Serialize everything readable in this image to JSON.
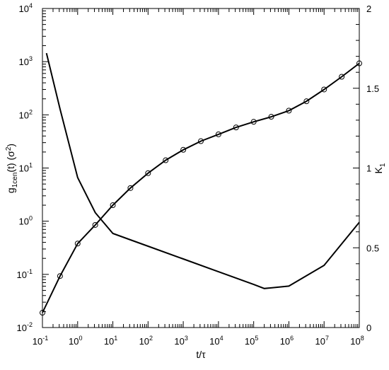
{
  "chart_data": {
    "type": "line",
    "x_label": "t/τ",
    "y_label": [
      "g",
      "1cen",
      "(t) (σ",
      "2",
      ")"
    ],
    "y2_label": [
      "K",
      "1"
    ],
    "xscale": "log",
    "yscale": "log",
    "xlim": [
      0.1,
      100000000
    ],
    "ylim": [
      0.01,
      10000
    ],
    "y2lim": [
      0,
      2
    ],
    "xticks": [
      {
        "value": 0.1,
        "label": "10",
        "exp": "-1"
      },
      {
        "value": 1,
        "label": "10",
        "exp": "0"
      },
      {
        "value": 10,
        "label": "10",
        "exp": "1"
      },
      {
        "value": 100,
        "label": "10",
        "exp": "2"
      },
      {
        "value": 1000,
        "label": "10",
        "exp": "3"
      },
      {
        "value": 10000,
        "label": "10",
        "exp": "4"
      },
      {
        "value": 100000,
        "label": "10",
        "exp": "5"
      },
      {
        "value": 1000000,
        "label": "10",
        "exp": "6"
      },
      {
        "value": 10000000,
        "label": "10",
        "exp": "7"
      },
      {
        "value": 100000000,
        "label": "10",
        "exp": "8"
      }
    ],
    "yticks": [
      {
        "value": 0.01,
        "label": "10",
        "exp": "-2"
      },
      {
        "value": 0.1,
        "label": "10",
        "exp": "-1"
      },
      {
        "value": 1,
        "label": "10",
        "exp": "0"
      },
      {
        "value": 10,
        "label": "10",
        "exp": "1"
      },
      {
        "value": 100,
        "label": "10",
        "exp": "2"
      },
      {
        "value": 1000,
        "label": "10",
        "exp": "3"
      },
      {
        "value": 10000,
        "label": "10",
        "exp": "4"
      }
    ],
    "y2ticks": [
      0,
      0.5,
      1,
      1.5,
      2
    ],
    "series": [
      {
        "color": "#000000",
        "marker": "circle",
        "x": [
          0.1,
          0.316,
          1,
          3.16,
          10,
          31.6,
          100,
          316,
          1000,
          3162,
          10000,
          31620,
          100000,
          316200,
          1000000,
          3162000,
          10000000,
          31620000,
          100000000
        ],
        "values": [
          0.019,
          0.093,
          0.38,
          0.85,
          2.0,
          4.2,
          8,
          14,
          22,
          32,
          43,
          58,
          74,
          92,
          120,
          180,
          300,
          520,
          930
        ]
      },
      {
        "color": "#000000",
        "axis": "y2",
        "x": [
          0.13,
          0.316,
          1,
          3.16,
          10,
          31.6,
          100,
          1000,
          10000,
          100000,
          200000,
          1000000,
          10000000,
          100000000
        ],
        "values": [
          1.72,
          1.37,
          0.94,
          0.72,
          0.59,
          0.55,
          0.51,
          0.43,
          0.35,
          0.27,
          0.245,
          0.26,
          0.39,
          0.66
        ]
      }
    ]
  }
}
